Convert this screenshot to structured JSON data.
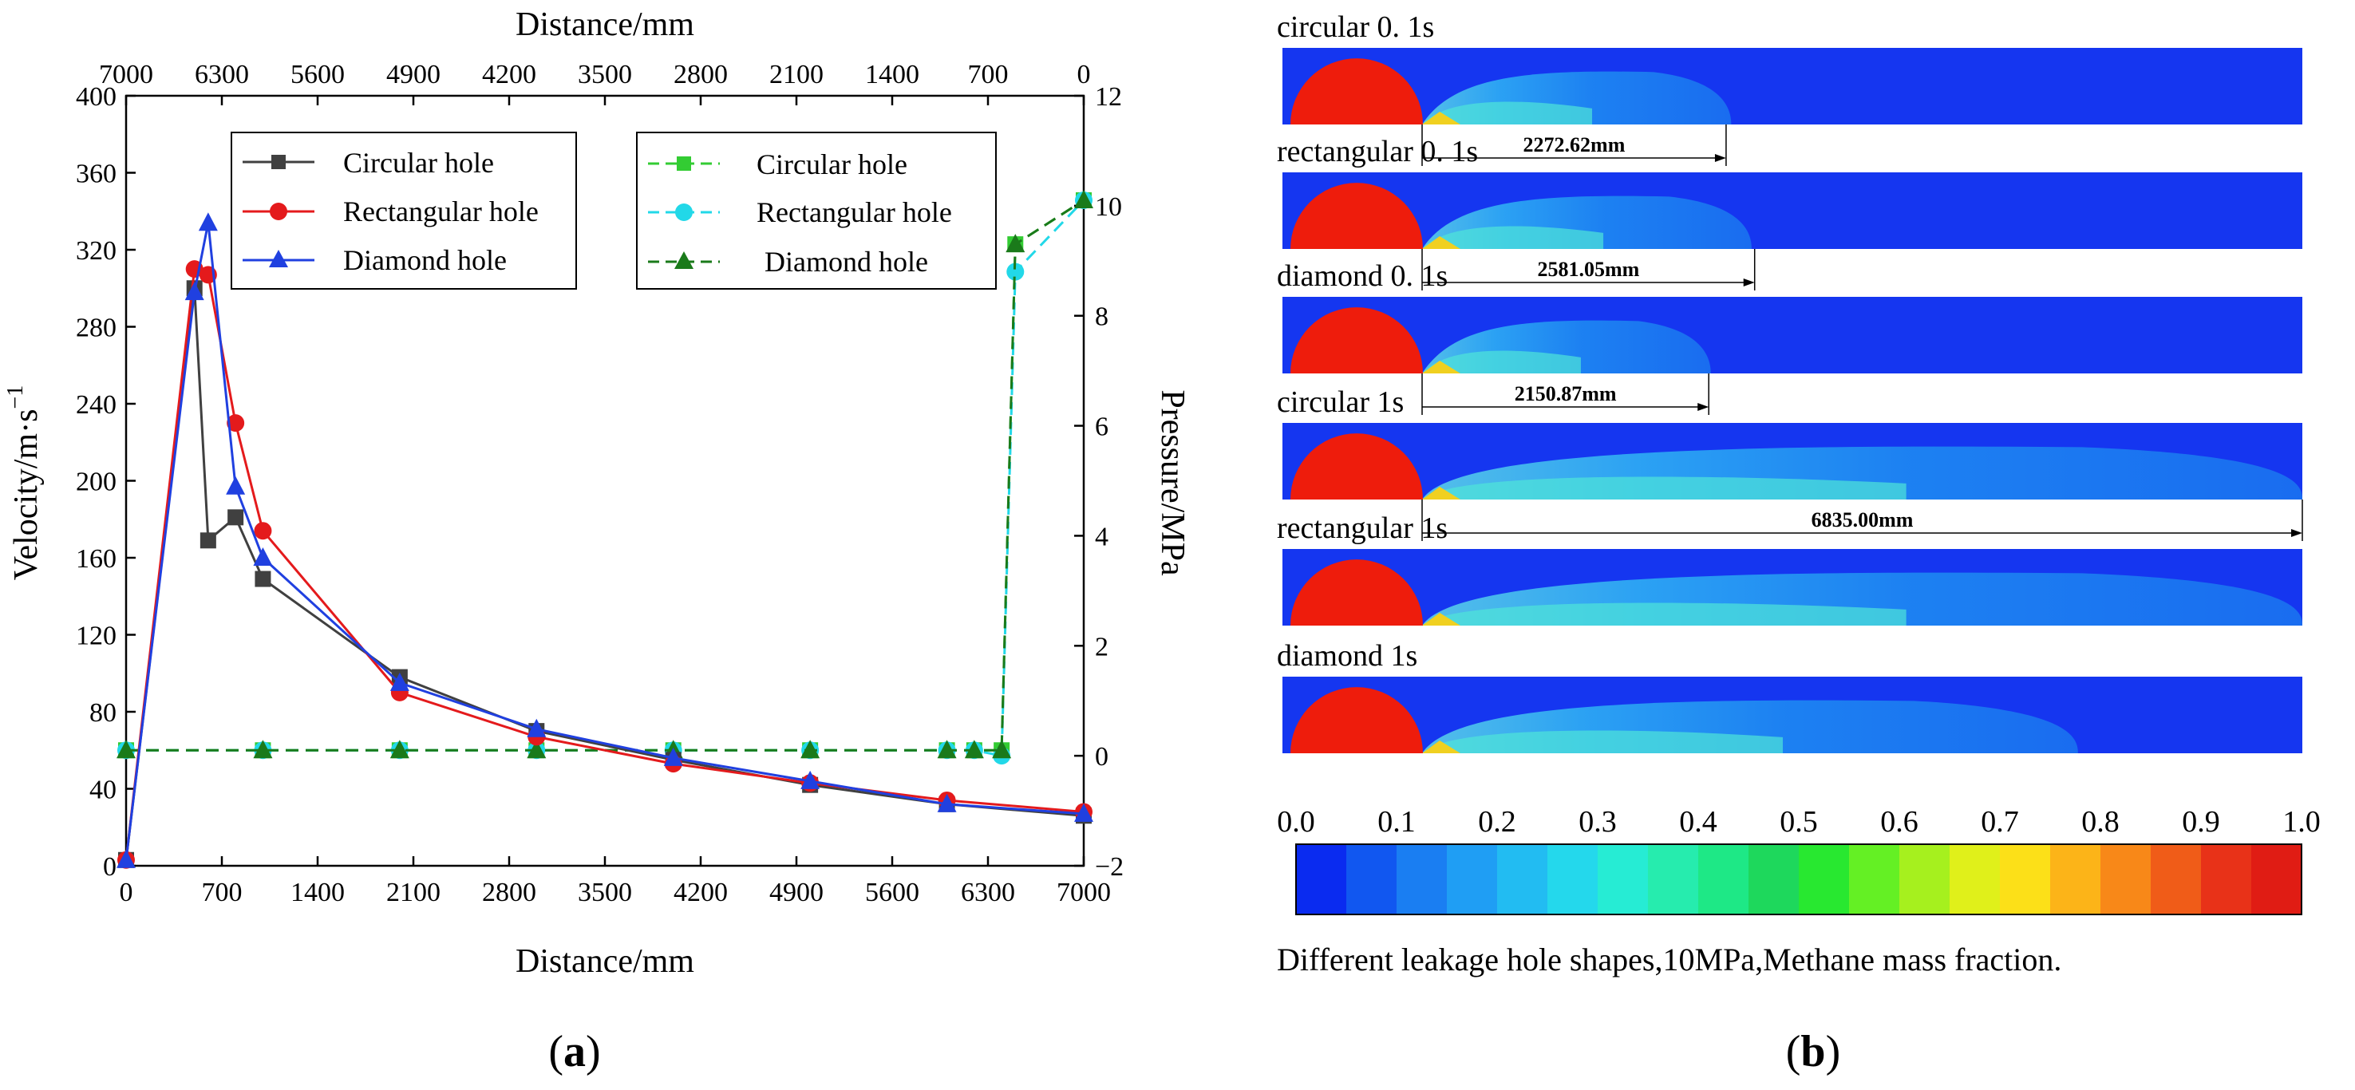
{
  "chart_data": [
    {
      "type": "line",
      "panel_label": "(a)",
      "xlabel_bottom": "Distance/mm",
      "xlabel_top": "Distance/mm",
      "ylabel_left": "Velocity/m·s",
      "ylabel_left_sup": "−1",
      "ylabel_right": "Pressure/MPa",
      "x_range": [
        0,
        7000
      ],
      "ylim_left": [
        0,
        400
      ],
      "ylim_right": [
        -2,
        12
      ],
      "x_ticks_bottom": [
        {
          "v": 0,
          "label": "0"
        },
        {
          "v": 700,
          "label": "700"
        },
        {
          "v": 1400,
          "label": "1400"
        },
        {
          "v": 2100,
          "label": "2100"
        },
        {
          "v": 2800,
          "label": "2800"
        },
        {
          "v": 3500,
          "label": "3500"
        },
        {
          "v": 4200,
          "label": "4200"
        },
        {
          "v": 4900,
          "label": "4900"
        },
        {
          "v": 5600,
          "label": "5600"
        },
        {
          "v": 6300,
          "label": "6300"
        },
        {
          "v": 7000,
          "label": "7000"
        }
      ],
      "x_ticks_top": [
        {
          "v": 0,
          "label": "7000"
        },
        {
          "v": 700,
          "label": "6300"
        },
        {
          "v": 1400,
          "label": "5600"
        },
        {
          "v": 2100,
          "label": "4900"
        },
        {
          "v": 2800,
          "label": "4200"
        },
        {
          "v": 3500,
          "label": "3500"
        },
        {
          "v": 4200,
          "label": "2800"
        },
        {
          "v": 4900,
          "label": "2100"
        },
        {
          "v": 5600,
          "label": "1400"
        },
        {
          "v": 6300,
          "label": "700"
        },
        {
          "v": 7000,
          "label": "0"
        }
      ],
      "y_ticks_left": [
        "0",
        "40",
        "80",
        "120",
        "160",
        "200",
        "240",
        "280",
        "320",
        "360",
        "400"
      ],
      "y_ticks_right": [
        "−2",
        "0",
        "2",
        "4",
        "6",
        "8",
        "10",
        "12"
      ],
      "series_velocity": [
        {
          "name": "Circular hole",
          "color": "#404040",
          "marker": "square",
          "axis": "left",
          "x": [
            0,
            500,
            600,
            800,
            1000,
            2000,
            3000,
            4000,
            5000,
            6000,
            7000
          ],
          "y": [
            3,
            300,
            169,
            181,
            149,
            98,
            70,
            55,
            42,
            32,
            26
          ]
        },
        {
          "name": "Rectangular hole",
          "color": "#e41a1c",
          "marker": "circle",
          "axis": "left",
          "x": [
            0,
            500,
            600,
            800,
            1000,
            2000,
            3000,
            4000,
            5000,
            6000,
            7000
          ],
          "y": [
            3,
            310,
            307,
            230,
            174,
            90,
            67,
            53,
            43,
            34,
            28
          ]
        },
        {
          "name": "Diamond hole",
          "color": "#2040e0",
          "marker": "triangle",
          "axis": "left",
          "x": [
            0,
            500,
            600,
            800,
            1000,
            2000,
            3000,
            4000,
            5000,
            6000,
            7000
          ],
          "y": [
            3,
            298,
            334,
            197,
            160,
            95,
            71,
            56,
            44,
            32,
            27
          ]
        }
      ],
      "series_pressure": [
        {
          "name": "Circular hole",
          "color": "#33cc33",
          "marker": "square",
          "axis": "right",
          "x": [
            0,
            1000,
            2000,
            3000,
            4000,
            5000,
            6000,
            6200,
            6400,
            6500,
            7000
          ],
          "y": [
            0.1,
            0.1,
            0.1,
            0.1,
            0.1,
            0.1,
            0.1,
            0.1,
            0.1,
            9.3,
            10.1
          ]
        },
        {
          "name": "Rectangular hole",
          "color": "#22d8e8",
          "marker": "circle",
          "axis": "right",
          "x": [
            0,
            1000,
            2000,
            3000,
            4000,
            5000,
            6000,
            6200,
            6400,
            6500,
            7000
          ],
          "y": [
            0.1,
            0.1,
            0.1,
            0.1,
            0.1,
            0.1,
            0.1,
            0.1,
            0.0,
            8.8,
            10.1
          ]
        },
        {
          "name": "Diamond hole",
          "color": "#1a7a1a",
          "marker": "triangle",
          "axis": "right",
          "x": [
            0,
            1000,
            2000,
            3000,
            4000,
            5000,
            6000,
            6200,
            6400,
            6500,
            7000
          ],
          "y": [
            0.1,
            0.1,
            0.1,
            0.1,
            0.1,
            0.1,
            0.1,
            0.1,
            0.1,
            9.3,
            10.1
          ]
        }
      ]
    },
    {
      "type": "heatmap",
      "panel_label": "(b)",
      "colorbar": {
        "ticks": [
          "0.0",
          "0.1",
          "0.2",
          "0.3",
          "0.4",
          "0.5",
          "0.6",
          "0.7",
          "0.8",
          "0.9",
          "1.0"
        ],
        "colors": [
          "#0a2bf0",
          "#1157f0",
          "#1a7ef2",
          "#1f9ef4",
          "#22bcf2",
          "#24d8ec",
          "#26ecd4",
          "#26ecae",
          "#1ee886",
          "#1ed85c",
          "#28e830",
          "#64f024",
          "#a6f01e",
          "#e0f01a",
          "#fce018",
          "#fcb418",
          "#f88818",
          "#f05c18",
          "#e83218",
          "#e01c14"
        ],
        "caption": "Different leakage hole shapes,10MPa,Methane mass fraction."
      },
      "strips": [
        {
          "label": "circular 0. 1s",
          "reach": 0.44,
          "dimension": "2272.62mm",
          "dim_reach": 0.435
        },
        {
          "label": "rectangular 0. 1s",
          "reach": 0.46,
          "dimension": "2581.05mm",
          "dim_reach": 0.463
        },
        {
          "label": "diamond 0. 1s",
          "reach": 0.42,
          "dimension": "2150.87mm",
          "dim_reach": 0.418
        },
        {
          "label": "circular 1s",
          "reach": 1.0,
          "dimension": "6835.00mm",
          "dim_reach": 1.0
        },
        {
          "label": "rectangular 1s",
          "reach": 1.0,
          "dimension": "",
          "dim_reach": 0
        },
        {
          "label": "diamond 1s",
          "reach": 0.78,
          "dimension": "",
          "dim_reach": 0
        }
      ]
    }
  ]
}
